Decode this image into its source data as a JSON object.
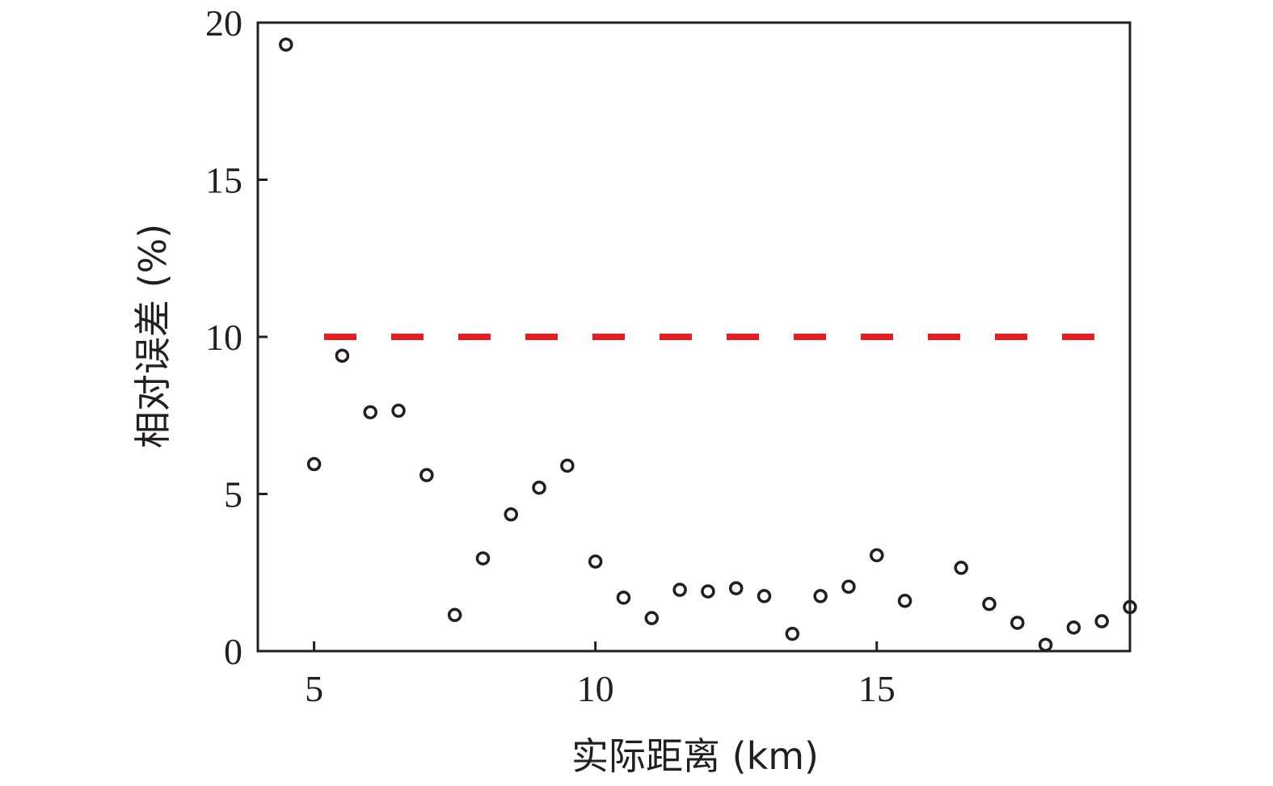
{
  "chart_data": {
    "type": "scatter",
    "xlabel": "实际距离 (km)",
    "ylabel": "相对误差 (%)",
    "xlim": [
      4,
      19.5
    ],
    "ylim": [
      0,
      20
    ],
    "xticks": [
      5,
      10,
      15
    ],
    "yticks": [
      0,
      5,
      10,
      15,
      20
    ],
    "grid": false,
    "marker": "open-circle",
    "point_color": "#231f20",
    "threshold_line": {
      "y": 10,
      "style": "dashed",
      "color": "#e31e24"
    },
    "x": [
      4.5,
      5.0,
      5.5,
      6.0,
      6.5,
      7.0,
      7.5,
      8.0,
      8.5,
      9.0,
      9.5,
      10.0,
      10.5,
      11.0,
      11.5,
      12.0,
      12.5,
      13.0,
      13.5,
      14.0,
      14.5,
      15.0,
      15.5,
      16.5,
      17.0,
      17.5,
      18.0,
      18.5,
      19.0,
      19.5
    ],
    "y": [
      19.3,
      5.95,
      9.4,
      7.6,
      7.65,
      5.6,
      1.15,
      2.95,
      4.35,
      5.2,
      5.9,
      2.85,
      1.7,
      1.05,
      1.95,
      1.9,
      2.0,
      1.75,
      0.55,
      1.75,
      2.05,
      3.05,
      1.6,
      2.65,
      1.5,
      0.9,
      0.2,
      0.75,
      0.95,
      1.4
    ]
  }
}
